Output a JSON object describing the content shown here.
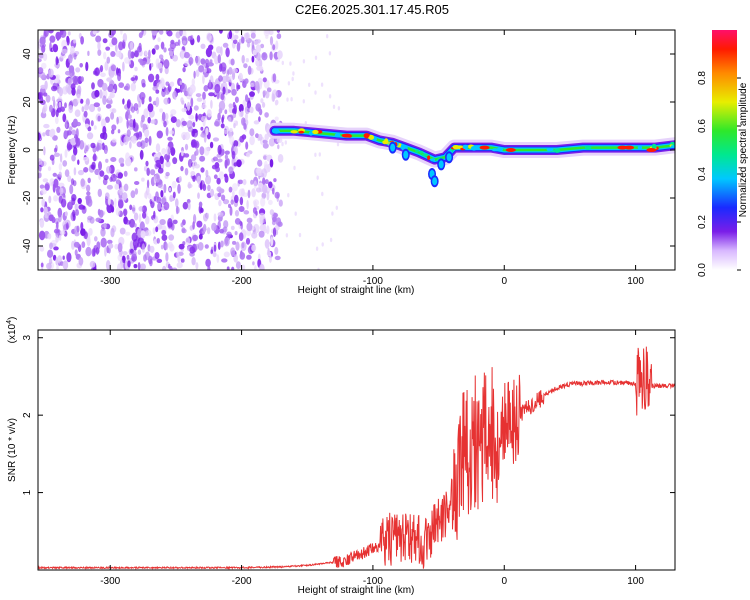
{
  "title": "C2E6.2025.301.17.45.R05",
  "chart_data": [
    {
      "type": "heatmap",
      "xlabel": "Height of straight line (km)",
      "ylabel": "Frequency (Hz)",
      "xlim": [
        -355,
        130
      ],
      "ylim": [
        -50,
        50
      ],
      "x_ticks": [
        -300,
        -200,
        -100,
        0,
        100
      ],
      "y_ticks": [
        -40,
        -20,
        0,
        20,
        40
      ],
      "colorbar": {
        "label": "Normalized spectral amplitude",
        "range": [
          0,
          1
        ],
        "ticks": [
          "0.0",
          "0.2",
          "0.4",
          "0.6",
          "0.8"
        ]
      },
      "noise_region_x": [
        -355,
        -170
      ],
      "signal_track": {
        "x": [
          -175,
          -160,
          -140,
          -120,
          -105,
          -95,
          -85,
          -75,
          -65,
          -57,
          -53,
          -45,
          -38,
          -30,
          -20,
          -10,
          0,
          20,
          40,
          60,
          80,
          100,
          115,
          130
        ],
        "y": [
          8,
          8,
          7,
          6,
          6,
          4,
          3,
          1,
          -1,
          -3,
          -4,
          -3,
          1,
          1,
          1,
          1,
          0,
          0,
          0,
          1,
          1,
          1,
          1,
          2
        ]
      }
    },
    {
      "type": "line",
      "xlabel": "Height of straight line (km)",
      "ylabel": "SNR (10 * v/v)",
      "y_multiplier": "(x10",
      "y_multiplier_exp": "4",
      "y_multiplier_close": ")",
      "xlim": [
        -355,
        130
      ],
      "ylim": [
        0,
        3.1
      ],
      "x_ticks": [
        -300,
        -200,
        -100,
        0,
        100
      ],
      "y_ticks": [
        1,
        2,
        3
      ],
      "color": "#e63232",
      "series": [
        {
          "x": [
            -355,
            -200,
            -170,
            -150,
            -120,
            -100,
            -80,
            -60,
            -45,
            -35,
            -25,
            -15,
            -5,
            0,
            10,
            20,
            30,
            40,
            50,
            70,
            90,
            100,
            105,
            108,
            110,
            115,
            130
          ],
          "y": [
            0.03,
            0.03,
            0.04,
            0.06,
            0.12,
            0.28,
            0.45,
            0.35,
            0.7,
            1.3,
            1.6,
            1.75,
            1.75,
            1.85,
            2.0,
            2.1,
            2.25,
            2.35,
            2.4,
            2.42,
            2.42,
            2.4,
            2.4,
            2.45,
            2.38,
            2.38,
            2.38
          ]
        }
      ]
    }
  ]
}
